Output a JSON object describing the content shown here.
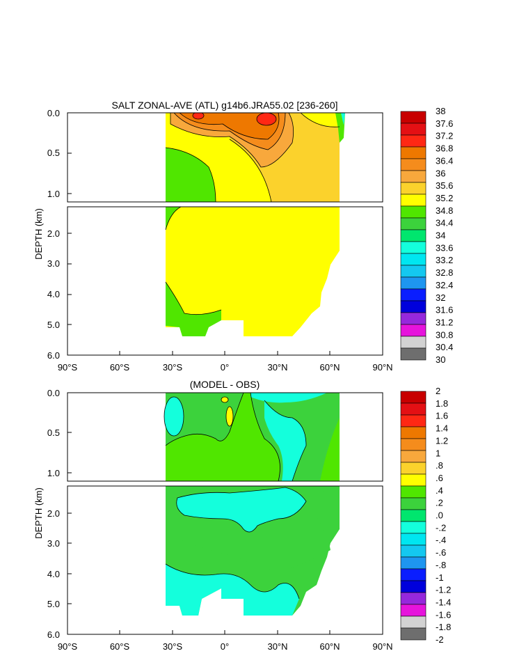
{
  "chart_data": [
    {
      "type": "heatmap",
      "title": "SALT ZONAL-AVE (ATL) g14b6.JRA55.02 [236-260]",
      "ylabel": "DEPTH (km)",
      "xlabel": "",
      "xticks": [
        "90°S",
        "60°S",
        "30°S",
        "0°",
        "30°N",
        "60°N",
        "90°N"
      ],
      "xlim": [
        -90,
        90
      ],
      "upper_panel": {
        "ylim": [
          0,
          1.1
        ],
        "yticks": [
          "0.0",
          "0.5",
          "1.0"
        ]
      },
      "lower_panel": {
        "ylim": [
          1.1,
          6.0
        ],
        "yticks": [
          "2.0",
          "3.0",
          "4.0",
          "5.0",
          "6.0"
        ]
      },
      "colorbar": {
        "labels": [
          "38",
          "37.6",
          "37.2",
          "36.8",
          "36.4",
          "36",
          "35.6",
          "35.2",
          "34.8",
          "34.4",
          "34",
          "33.6",
          "33.2",
          "32.8",
          "32.4",
          "32",
          "31.6",
          "31.2",
          "30.8",
          "30.4",
          "30"
        ],
        "colors": [
          "#c80000",
          "#e41014",
          "#ff2814",
          "#ee7800",
          "#f58c1c",
          "#f8a83c",
          "#fbd22c",
          "#ffff00",
          "#50e600",
          "#3cd23c",
          "#00e66e",
          "#14ffdc",
          "#00e6f0",
          "#14c8f0",
          "#1e96f0",
          "#0a1eff",
          "#0000dc",
          "#9628dc",
          "#e614dc",
          "#d2d2d2",
          "#6e6e6e"
        ]
      },
      "regions_upper": [
        {
          "value": "34.4–34.8",
          "color": "#50e600",
          "description_color_only": true
        },
        {
          "value": "34.8–35.2",
          "color": "#ffff00"
        },
        {
          "value": "35.2–35.6",
          "color": "#fbd22c"
        },
        {
          "value": "35.6–36.0",
          "color": "#f8a83c"
        },
        {
          "value": "36.0–36.4",
          "color": "#f58c1c"
        },
        {
          "value": "36.4–36.8",
          "color": "#ee7800"
        },
        {
          "value": "37.2–37.6",
          "color": "#ff2814"
        }
      ]
    },
    {
      "type": "heatmap",
      "title": "(MODEL - OBS)",
      "ylabel": "DEPTH (km)",
      "xlabel": "",
      "xticks": [
        "90°S",
        "60°S",
        "30°S",
        "0°",
        "30°N",
        "60°N",
        "90°N"
      ],
      "xlim": [
        -90,
        90
      ],
      "upper_panel": {
        "ylim": [
          0,
          1.1
        ],
        "yticks": [
          "0.0",
          "0.5",
          "1.0"
        ]
      },
      "lower_panel": {
        "ylim": [
          1.1,
          6.0
        ],
        "yticks": [
          "2.0",
          "3.0",
          "4.0",
          "5.0",
          "6.0"
        ]
      },
      "colorbar": {
        "labels": [
          "2",
          "1.8",
          "1.6",
          "1.4",
          "1.2",
          "1",
          ".8",
          ".6",
          ".4",
          ".2",
          ".0",
          "-.2",
          "-.4",
          "-.6",
          "-.8",
          "-1",
          "-1.2",
          "-1.4",
          "-1.6",
          "-1.8",
          "-2"
        ],
        "colors": [
          "#c80000",
          "#e41014",
          "#ff2814",
          "#ee7800",
          "#f58c1c",
          "#f8a83c",
          "#fbd22c",
          "#ffff00",
          "#50e600",
          "#3cd23c",
          "#00e66e",
          "#14ffdc",
          "#00e6f0",
          "#14c8f0",
          "#1e96f0",
          "#0a1eff",
          "#0000dc",
          "#9628dc",
          "#e614dc",
          "#d2d2d2",
          "#6e6e6e"
        ]
      }
    }
  ]
}
